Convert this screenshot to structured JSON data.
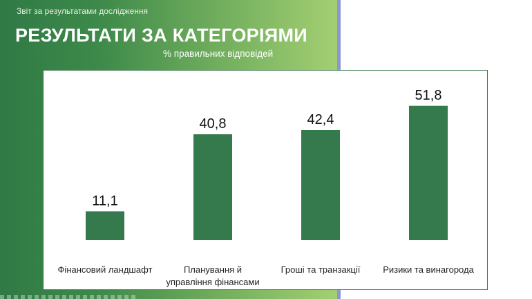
{
  "header": {
    "report_label": "Звіт за результатами дослідження",
    "title": "РЕЗУЛЬТАТИ ЗА КАТЕГОРІЯМИ",
    "subtitle": "% правильних відповідей"
  },
  "colors": {
    "bar": "#357a4c",
    "hero_start": "#2f7a45",
    "hero_end": "#a3cf72",
    "accent_divider": "#8d96d2"
  },
  "chart_data": {
    "type": "bar",
    "title": "",
    "xlabel": "",
    "ylabel": "",
    "categories": [
      [
        "Фінансовий ландшафт"
      ],
      [
        "Планування й",
        "управління фінансами"
      ],
      [
        "Гроші та транзакції"
      ],
      [
        "Ризики та винагорода"
      ]
    ],
    "values": [
      11.1,
      40.8,
      42.4,
      51.8
    ],
    "value_labels": [
      "11,1",
      "40,8",
      "42,4",
      "51,8"
    ],
    "ylim": [
      0,
      60
    ],
    "grid": false,
    "legend": "none"
  }
}
